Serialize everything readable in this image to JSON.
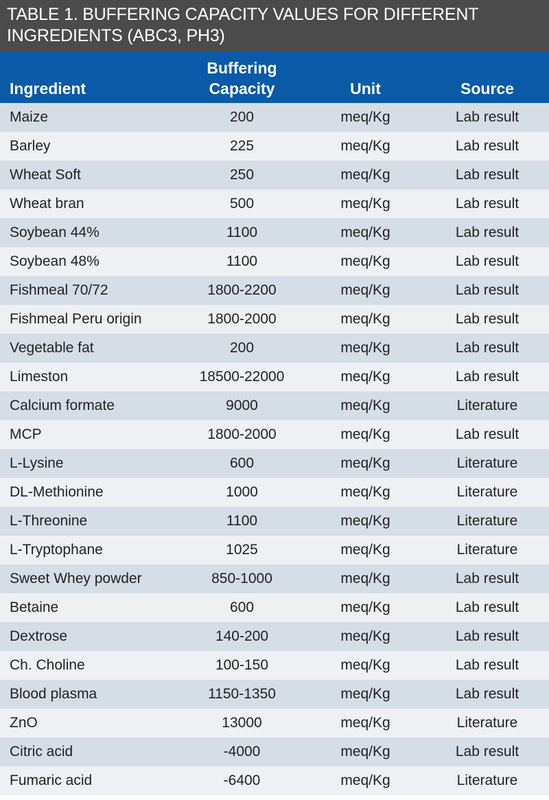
{
  "title": "TABLE 1. BUFFERING CAPACITY VALUES FOR DIFFERENT INGREDIENTS (ABC3, PH3)",
  "columns": [
    "Ingredient",
    "Buffering Capacity",
    "Unit",
    "Source"
  ],
  "colors": {
    "title_bg": "#4b4b4b",
    "header_bg": "#0a5aa8",
    "row_dark": "#d5dde6",
    "row_light": "#eef0f4"
  },
  "rows": [
    [
      "Maize",
      "200",
      "meq/Kg",
      "Lab result"
    ],
    [
      "Barley",
      "225",
      "meq/Kg",
      "Lab result"
    ],
    [
      "Wheat Soft",
      "250",
      "meq/Kg",
      "Lab result"
    ],
    [
      "Wheat bran",
      "500",
      "meq/Kg",
      "Lab result"
    ],
    [
      "Soybean 44%",
      "1100",
      "meq/Kg",
      "Lab result"
    ],
    [
      "Soybean 48%",
      "1100",
      "meq/Kg",
      "Lab result"
    ],
    [
      "Fishmeal 70/72",
      "1800-2200",
      "meq/Kg",
      "Lab result"
    ],
    [
      "Fishmeal Peru origin",
      "1800-2000",
      "meq/Kg",
      "Lab result"
    ],
    [
      "Vegetable fat",
      "200",
      "meq/Kg",
      "Lab result"
    ],
    [
      "Limeston",
      "18500-22000",
      "meq/Kg",
      "Lab result"
    ],
    [
      "Calcium formate",
      "9000",
      "meq/Kg",
      "Literature"
    ],
    [
      "MCP",
      "1800-2000",
      "meq/Kg",
      "Lab result"
    ],
    [
      "L-Lysine",
      "600",
      "meq/Kg",
      "Literature"
    ],
    [
      "DL-Methionine",
      "1000",
      "meq/Kg",
      "Literature"
    ],
    [
      "L-Threonine",
      "1100",
      "meq/Kg",
      "Literature"
    ],
    [
      "L-Tryptophane",
      "1025",
      "meq/Kg",
      "Literature"
    ],
    [
      "Sweet Whey powder",
      "850-1000",
      "meq/Kg",
      "Lab result"
    ],
    [
      "Betaine",
      "600",
      "meq/Kg",
      "Lab result"
    ],
    [
      "Dextrose",
      "140-200",
      "meq/Kg",
      "Lab result"
    ],
    [
      "Ch. Choline",
      "100-150",
      "meq/Kg",
      "Lab result"
    ],
    [
      "Blood plasma",
      "1150-1350",
      "meq/Kg",
      "Lab result"
    ],
    [
      "ZnO",
      "13000",
      "meq/Kg",
      "Literature"
    ],
    [
      "Citric acid",
      "-4000",
      "meq/Kg",
      "Lab result"
    ],
    [
      "Fumaric acid",
      "-6400",
      "meq/Kg",
      "Literature"
    ]
  ]
}
